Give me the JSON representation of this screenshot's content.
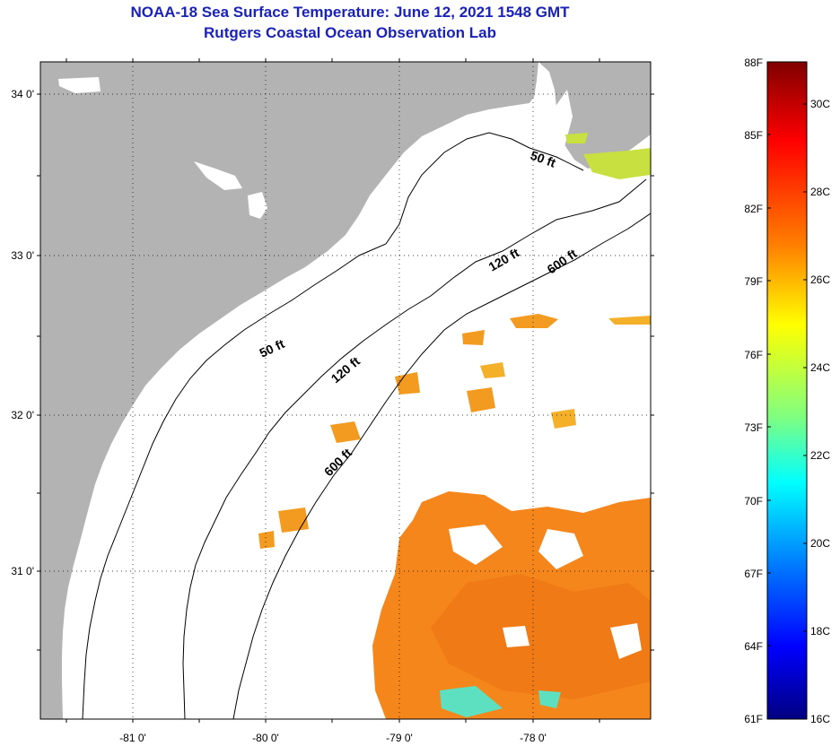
{
  "header": {
    "title": "NOAA-18 Sea Surface Temperature:  June 12, 2021 1548 GMT",
    "subtitle": "Rutgers Coastal Ocean Observation Lab"
  },
  "map": {
    "lon_ticks": [
      "-81 0'",
      "-80 0'",
      "-79 0'",
      "-78 0'"
    ],
    "lat_ticks": [
      "34 0'",
      "33 0'",
      "32 0'",
      "31 0'"
    ],
    "contour_labels": [
      "50 ft",
      "120 ft",
      "600 ft",
      "50 ft",
      "120 ft",
      "600 ft"
    ],
    "land_color": "#b3b3b3",
    "ocean_no_data_color": "#ffffff"
  },
  "colorbar": {
    "f_labels": [
      "88F",
      "85F",
      "82F",
      "79F",
      "76F",
      "73F",
      "70F",
      "67F",
      "64F",
      "61F"
    ],
    "c_labels": [
      "30C",
      "28C",
      "26C",
      "24C",
      "22C",
      "20C",
      "18C",
      "16C"
    ],
    "colors": [
      "#000080",
      "#0000ff",
      "#0080ff",
      "#00ffff",
      "#80ff80",
      "#ffff00",
      "#ff8000",
      "#ff0000",
      "#800000"
    ]
  }
}
